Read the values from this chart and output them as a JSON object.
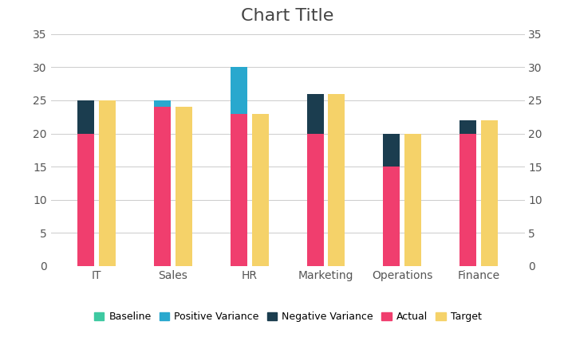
{
  "title": "Chart Title",
  "categories": [
    "IT",
    "Sales",
    "HR",
    "Marketing",
    "Operations",
    "Finance"
  ],
  "actual": [
    20,
    25,
    30,
    20,
    15,
    20
  ],
  "target": [
    25,
    24,
    23,
    26,
    20,
    22
  ],
  "colors": {
    "actual": "#F03E6E",
    "target": "#F5D269",
    "positive_variance": "#29A8CE",
    "negative_variance": "#1B3D4F",
    "baseline": "#3EC9A1"
  },
  "ylim": [
    0,
    35
  ],
  "yticks": [
    0,
    5,
    10,
    15,
    20,
    25,
    30,
    35
  ],
  "bar_width": 0.22,
  "background_color": "#FFFFFF",
  "grid_color": "#CCCCCC",
  "title_fontsize": 16,
  "tick_fontsize": 10,
  "legend_fontsize": 9
}
